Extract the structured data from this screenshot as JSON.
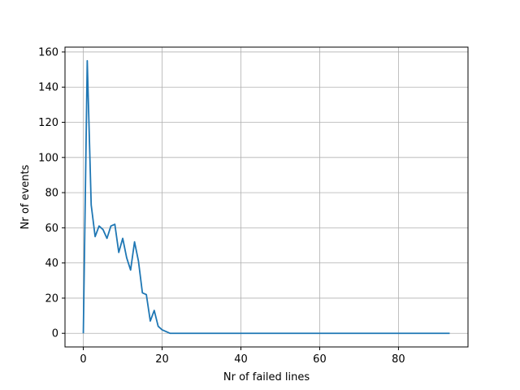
{
  "chart_data": {
    "type": "line",
    "xlabel": "Nr of failed lines",
    "ylabel": "Nr of events",
    "xlim": [
      -4.65,
      97.65
    ],
    "ylim": [
      -7.75,
      162.75
    ],
    "xticks": [
      0,
      20,
      40,
      60,
      80
    ],
    "yticks": [
      0,
      20,
      40,
      60,
      80,
      100,
      120,
      140,
      160
    ],
    "grid": true,
    "line_color": "#1f77b4",
    "x": [
      0,
      1,
      2,
      3,
      4,
      5,
      6,
      7,
      8,
      9,
      10,
      11,
      12,
      13,
      14,
      15,
      16,
      17,
      18,
      19,
      20,
      21,
      22,
      23,
      24,
      25,
      26,
      27,
      28,
      29,
      30,
      31,
      32,
      33,
      34,
      35,
      36,
      37,
      38,
      39,
      40,
      41,
      42,
      43,
      44,
      45,
      46,
      47,
      48,
      49,
      50,
      51,
      52,
      53,
      54,
      55,
      56,
      57,
      58,
      59,
      60,
      61,
      62,
      63,
      64,
      65,
      66,
      67,
      68,
      69,
      70,
      71,
      72,
      73,
      74,
      75,
      76,
      77,
      78,
      79,
      80,
      81,
      82,
      83,
      84,
      85,
      86,
      87,
      88,
      89,
      90,
      91,
      92,
      93
    ],
    "y": [
      0,
      155,
      73,
      55,
      61,
      59,
      54,
      61,
      62,
      46,
      54,
      43,
      36,
      52,
      41,
      23,
      22,
      7,
      13,
      4,
      2,
      1,
      0,
      0,
      0,
      0,
      0,
      0,
      0,
      0,
      0,
      0,
      0,
      0,
      0,
      0,
      0,
      0,
      0,
      0,
      0,
      0,
      0,
      0,
      0,
      0,
      0,
      0,
      0,
      0,
      0,
      0,
      0,
      0,
      0,
      0,
      0,
      0,
      0,
      0,
      0,
      0,
      0,
      0,
      0,
      0,
      0,
      0,
      0,
      0,
      0,
      0,
      0,
      0,
      0,
      0,
      0,
      0,
      0,
      0,
      0,
      0,
      0,
      0,
      0,
      0,
      0,
      0,
      0,
      0,
      0,
      0,
      0,
      0
    ]
  }
}
